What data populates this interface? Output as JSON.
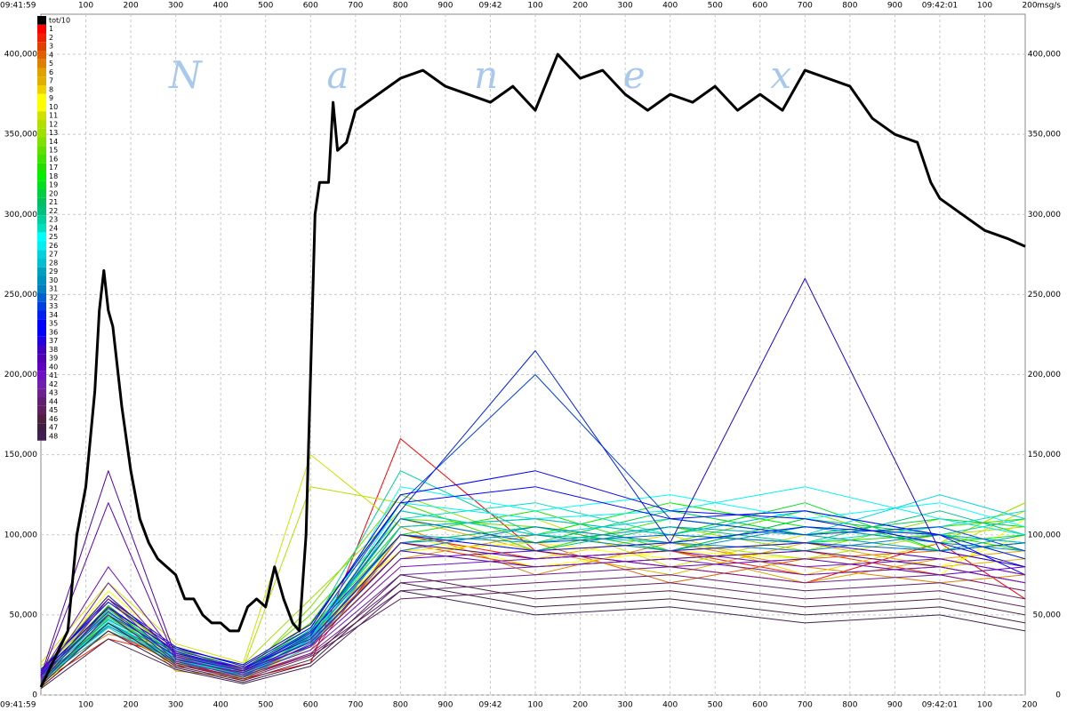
{
  "chart_data": {
    "type": "line",
    "watermark": "Nanex",
    "y_unit": "msg/s",
    "xlim": [
      0,
      2190
    ],
    "ylim": [
      0,
      425000
    ],
    "xticks": [
      {
        "value": 0,
        "label": "09:41:59"
      },
      100,
      200,
      300,
      400,
      500,
      600,
      700,
      800,
      900,
      {
        "value": 1000,
        "label": "09:42"
      },
      {
        "value": 1100,
        "label": "100"
      },
      {
        "value": 1200,
        "label": "200"
      },
      {
        "value": 1300,
        "label": "300"
      },
      {
        "value": 1400,
        "label": "400"
      },
      {
        "value": 1500,
        "label": "500"
      },
      {
        "value": 1600,
        "label": "600"
      },
      {
        "value": 1700,
        "label": "700"
      },
      {
        "value": 1800,
        "label": "800"
      },
      {
        "value": 1900,
        "label": "900"
      },
      {
        "value": 2000,
        "label": "09:42:01"
      },
      {
        "value": 2100,
        "label": "100"
      },
      {
        "value": 2200,
        "label": "200"
      }
    ],
    "yticks": [
      0,
      {
        "value": 50000,
        "label": "50,000"
      },
      {
        "value": 100000,
        "label": "100,000"
      },
      {
        "value": 150000,
        "label": "150,000"
      },
      {
        "value": 200000,
        "label": "200,000"
      },
      {
        "value": 250000,
        "label": "250,000"
      },
      {
        "value": 300000,
        "label": "300,000"
      },
      {
        "value": 350000,
        "label": "350,000"
      },
      {
        "value": 400000,
        "label": "400,000"
      }
    ],
    "grid": true,
    "legend": "top-left",
    "x": [
      0,
      150,
      300,
      450,
      600,
      800,
      1100,
      1400,
      1700,
      2000,
      2190
    ],
    "series": [
      {
        "name": "tot/10",
        "color": "#000000",
        "x": [
          0,
          60,
          80,
          100,
          120,
          130,
          140,
          150,
          160,
          180,
          200,
          220,
          240,
          260,
          280,
          300,
          320,
          340,
          360,
          380,
          400,
          420,
          440,
          460,
          480,
          500,
          520,
          540,
          560,
          575,
          590,
          600,
          610,
          620,
          640,
          650,
          660,
          680,
          700,
          750,
          800,
          850,
          900,
          950,
          1000,
          1050,
          1100,
          1150,
          1200,
          1250,
          1300,
          1350,
          1400,
          1450,
          1500,
          1550,
          1600,
          1650,
          1700,
          1750,
          1800,
          1850,
          1900,
          1950,
          1980,
          2000,
          2050,
          2100,
          2150,
          2190
        ],
        "values": [
          5000,
          40000,
          100000,
          130000,
          190000,
          240000,
          265000,
          240000,
          230000,
          180000,
          140000,
          110000,
          95000,
          85000,
          80000,
          75000,
          60000,
          60000,
          50000,
          45000,
          45000,
          40000,
          40000,
          55000,
          60000,
          55000,
          80000,
          60000,
          45000,
          40000,
          100000,
          200000,
          300000,
          320000,
          320000,
          370000,
          340000,
          345000,
          365000,
          375000,
          385000,
          390000,
          380000,
          375000,
          370000,
          380000,
          365000,
          400000,
          385000,
          390000,
          375000,
          365000,
          375000,
          370000,
          380000,
          365000,
          375000,
          365000,
          390000,
          385000,
          380000,
          360000,
          350000,
          345000,
          320000,
          310000,
          300000,
          290000,
          285000,
          280000
        ]
      },
      {
        "name": "1",
        "color": "#ff0000",
        "values": [
          5000,
          40000,
          20000,
          10000,
          20000,
          160000,
          90000,
          80000,
          70000,
          95000,
          60000
        ]
      },
      {
        "name": "2",
        "color": "#f02000",
        "values": [
          8000,
          35000,
          25000,
          12000,
          25000,
          100000,
          85000,
          90000,
          75000,
          80000,
          70000
        ]
      },
      {
        "name": "3",
        "color": "#e04000",
        "values": [
          10000,
          45000,
          18000,
          15000,
          30000,
          95000,
          80000,
          85000,
          90000,
          75000,
          65000
        ]
      },
      {
        "name": "4",
        "color": "#e06000",
        "values": [
          6000,
          50000,
          22000,
          9000,
          35000,
          90000,
          95000,
          70000,
          85000,
          90000,
          80000
        ]
      },
      {
        "name": "5",
        "color": "#e08000",
        "values": [
          12000,
          38000,
          30000,
          14000,
          28000,
          105000,
          75000,
          95000,
          80000,
          70000,
          75000
        ]
      },
      {
        "name": "6",
        "color": "#e0a000",
        "values": [
          9000,
          55000,
          15000,
          11000,
          32000,
          85000,
          100000,
          90000,
          70000,
          85000,
          90000
        ]
      },
      {
        "name": "7",
        "color": "#e0b000",
        "values": [
          7000,
          60000,
          26000,
          13000,
          40000,
          110000,
          90000,
          75000,
          95000,
          80000,
          85000
        ]
      },
      {
        "name": "8",
        "color": "#f0d000",
        "values": [
          11000,
          42000,
          19000,
          16000,
          36000,
          95000,
          85000,
          100000,
          75000,
          95000,
          120000
        ]
      },
      {
        "name": "9",
        "color": "#ffff00",
        "values": [
          15000,
          65000,
          28000,
          10000,
          30000,
          100000,
          80000,
          90000,
          85000,
          75000,
          110000
        ]
      },
      {
        "name": "10",
        "color": "#ffff00",
        "values": [
          4000,
          48000,
          24000,
          18000,
          45000,
          90000,
          95000,
          85000,
          90000,
          80000,
          100000
        ]
      },
      {
        "name": "11",
        "color": "#d0e000",
        "values": [
          20000,
          70000,
          32000,
          20000,
          150000,
          105000,
          110000,
          80000,
          100000,
          90000,
          115000
        ]
      },
      {
        "name": "12",
        "color": "#b0e000",
        "values": [
          18000,
          52000,
          21000,
          17000,
          130000,
          120000,
          90000,
          95000,
          85000,
          100000,
          105000
        ]
      },
      {
        "name": "13",
        "color": "#a0e000",
        "values": [
          14000,
          58000,
          27000,
          19000,
          60000,
          115000,
          100000,
          90000,
          110000,
          95000,
          120000
        ]
      },
      {
        "name": "14",
        "color": "#80e000",
        "values": [
          16000,
          62000,
          23000,
          12000,
          55000,
          125000,
          95000,
          105000,
          90000,
          110000,
          100000
        ]
      },
      {
        "name": "15",
        "color": "#60e000",
        "values": [
          10000,
          44000,
          29000,
          15000,
          50000,
          110000,
          105000,
          95000,
          115000,
          90000,
          95000
        ]
      },
      {
        "name": "16",
        "color": "#40e000",
        "values": [
          13000,
          50000,
          20000,
          14000,
          45000,
          120000,
          90000,
          110000,
          100000,
          105000,
          110000
        ]
      },
      {
        "name": "17",
        "color": "#20e000",
        "values": [
          9000,
          47000,
          25000,
          16000,
          42000,
          100000,
          115000,
          90000,
          95000,
          100000,
          90000
        ]
      },
      {
        "name": "18",
        "color": "#00f000",
        "values": [
          11000,
          56000,
          22000,
          13000,
          38000,
          115000,
          100000,
          120000,
          105000,
          95000,
          100000
        ]
      },
      {
        "name": "19",
        "color": "#00e020",
        "values": [
          12000,
          53000,
          26000,
          15000,
          40000,
          105000,
          110000,
          100000,
          120000,
          90000,
          95000
        ]
      },
      {
        "name": "20",
        "color": "#00d040",
        "values": [
          8000,
          49000,
          24000,
          12000,
          36000,
          110000,
          95000,
          115000,
          100000,
          110000,
          105000
        ]
      },
      {
        "name": "21",
        "color": "#00c060",
        "values": [
          10000,
          45000,
          21000,
          14000,
          34000,
          95000,
          105000,
          90000,
          110000,
          100000,
          95000
        ]
      },
      {
        "name": "22",
        "color": "#00c080",
        "values": [
          9000,
          43000,
          23000,
          11000,
          37000,
          100000,
          90000,
          105000,
          95000,
          115000,
          100000
        ]
      },
      {
        "name": "23",
        "color": "#00d0a0",
        "values": [
          11000,
          51000,
          27000,
          13000,
          41000,
          140000,
          100000,
          95000,
          105000,
          100000,
          110000
        ]
      },
      {
        "name": "24",
        "color": "#00e0c0",
        "values": [
          13000,
          48000,
          25000,
          15000,
          39000,
          110000,
          120000,
          100000,
          95000,
          105000,
          115000
        ]
      },
      {
        "name": "25",
        "color": "#00ffff",
        "values": [
          7000,
          46000,
          22000,
          12000,
          35000,
          130000,
          115000,
          125000,
          110000,
          120000,
          105000
        ]
      },
      {
        "name": "26",
        "color": "#00f0f0",
        "values": [
          8000,
          44000,
          24000,
          14000,
          33000,
          120000,
          110000,
          115000,
          130000,
          110000,
          100000
        ]
      },
      {
        "name": "27",
        "color": "#00d0e0",
        "values": [
          10000,
          42000,
          20000,
          13000,
          31000,
          115000,
          100000,
          110000,
          100000,
          125000,
          110000
        ]
      },
      {
        "name": "28",
        "color": "#00c0d0",
        "values": [
          9000,
          40000,
          22000,
          11000,
          30000,
          105000,
          110000,
          100000,
          115000,
          100000,
          95000
        ]
      },
      {
        "name": "29",
        "color": "#00a0c0",
        "values": [
          12000,
          47000,
          25000,
          15000,
          36000,
          100000,
          95000,
          105000,
          100000,
          90000,
          100000
        ]
      },
      {
        "name": "30",
        "color": "#0090c0",
        "values": [
          11000,
          45000,
          23000,
          14000,
          34000,
          95000,
          100000,
          90000,
          105000,
          95000,
          90000
        ]
      },
      {
        "name": "31",
        "color": "#0080c0",
        "values": [
          10000,
          43000,
          21000,
          12000,
          32000,
          90000,
          105000,
          95000,
          90000,
          100000,
          85000
        ]
      },
      {
        "name": "32",
        "color": "#0060d0",
        "values": [
          13000,
          50000,
          26000,
          16000,
          38000,
          110000,
          95000,
          100000,
          95000,
          90000,
          95000
        ]
      },
      {
        "name": "33",
        "color": "#0040e0",
        "values": [
          14000,
          54000,
          28000,
          17000,
          40000,
          120000,
          200000,
          110000,
          100000,
          105000,
          90000
        ]
      },
      {
        "name": "34",
        "color": "#0020f0",
        "values": [
          12000,
          52000,
          24000,
          15000,
          37000,
          115000,
          215000,
          95000,
          105000,
          100000,
          85000
        ]
      },
      {
        "name": "35",
        "color": "#0000ff",
        "values": [
          15000,
          60000,
          30000,
          18000,
          42000,
          125000,
          140000,
          115000,
          110000,
          95000,
          80000
        ]
      },
      {
        "name": "36",
        "color": "#0000ff",
        "values": [
          16000,
          58000,
          29000,
          19000,
          44000,
          120000,
          130000,
          110000,
          115000,
          100000,
          75000
        ]
      },
      {
        "name": "37",
        "color": "#2000e0",
        "values": [
          13000,
          55000,
          27000,
          16000,
          39000,
          100000,
          90000,
          95000,
          260000,
          90000,
          80000
        ]
      },
      {
        "name": "38",
        "color": "#4000c0",
        "values": [
          14000,
          62000,
          26000,
          17000,
          35000,
          95000,
          85000,
          90000,
          95000,
          85000,
          75000
        ]
      },
      {
        "name": "39",
        "color": "#5000b0",
        "values": [
          12000,
          140000,
          24000,
          15000,
          33000,
          90000,
          80000,
          85000,
          90000,
          80000,
          70000
        ]
      },
      {
        "name": "40",
        "color": "#6000c0",
        "values": [
          11000,
          120000,
          22000,
          14000,
          31000,
          85000,
          90000,
          80000,
          85000,
          75000,
          80000
        ]
      },
      {
        "name": "41",
        "color": "#7010c0",
        "values": [
          13000,
          80000,
          25000,
          16000,
          30000,
          80000,
          85000,
          90000,
          80000,
          85000,
          75000
        ]
      },
      {
        "name": "42",
        "color": "#7020b0",
        "values": [
          10000,
          70000,
          23000,
          13000,
          28000,
          75000,
          80000,
          85000,
          75000,
          80000,
          70000
        ]
      },
      {
        "name": "43",
        "color": "#702090",
        "values": [
          9000,
          60000,
          21000,
          12000,
          26000,
          70000,
          75000,
          80000,
          70000,
          75000,
          65000
        ]
      },
      {
        "name": "44",
        "color": "#602070",
        "values": [
          8000,
          55000,
          20000,
          11000,
          25000,
          65000,
          70000,
          75000,
          65000,
          70000,
          60000
        ]
      },
      {
        "name": "45",
        "color": "#602060",
        "values": [
          7000,
          50000,
          19000,
          10000,
          24000,
          60000,
          65000,
          70000,
          60000,
          65000,
          55000
        ]
      },
      {
        "name": "46",
        "color": "#502040",
        "values": [
          6000,
          45000,
          18000,
          9000,
          22000,
          75000,
          60000,
          65000,
          55000,
          60000,
          50000
        ]
      },
      {
        "name": "47",
        "color": "#402040",
        "values": [
          5000,
          40000,
          17000,
          8000,
          20000,
          70000,
          55000,
          60000,
          50000,
          55000,
          45000
        ]
      },
      {
        "name": "48",
        "color": "#402050",
        "values": [
          4000,
          35000,
          16000,
          7000,
          18000,
          65000,
          50000,
          55000,
          45000,
          50000,
          40000
        ]
      }
    ]
  }
}
